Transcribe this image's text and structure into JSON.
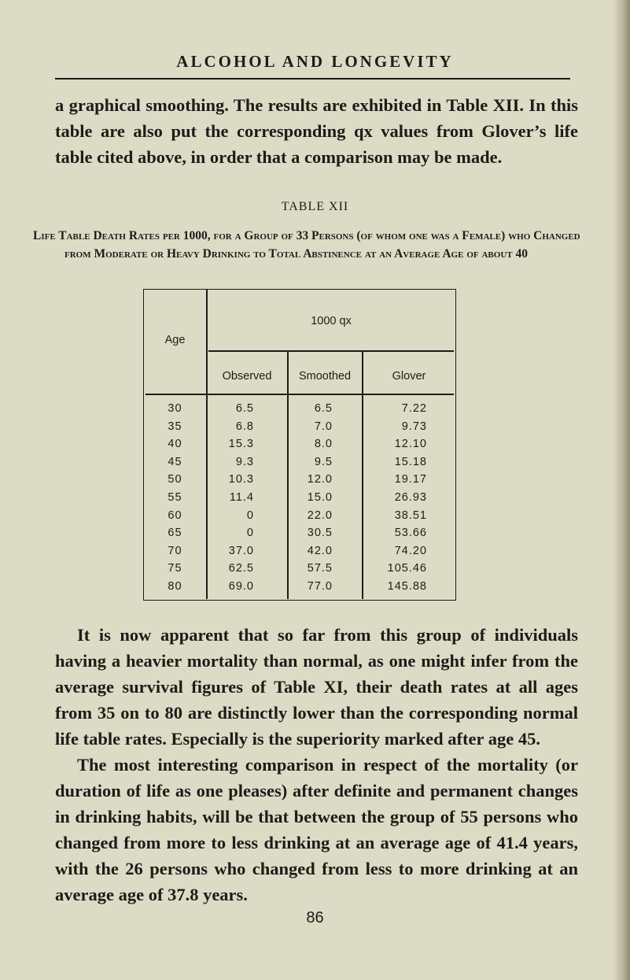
{
  "running_head": "ALCOHOL AND LONGEVITY",
  "paragraph_1": "a graphical smoothing. The results are exhibited in Table XII. In this table are also put the corresponding qx values from Glover’s life table cited above, in order that a comparison may be made.",
  "table": {
    "title": "TABLE XII",
    "caption": "Life Table Death Rates per 1000, for a Group of 33 Persons (of whom one was a Female) who Changed from Moderate or Heavy Drinking to Total Abstinence at an Average Age of about 40",
    "header_age": "Age",
    "header_group": "1000 qx",
    "columns": [
      "Observed",
      "Smoothed",
      "Glover"
    ],
    "rows": [
      [
        "30",
        "6.5",
        "6.5",
        "7.22"
      ],
      [
        "35",
        "6.8",
        "7.0",
        "9.73"
      ],
      [
        "40",
        "15.3",
        "8.0",
        "12.10"
      ],
      [
        "45",
        "9.3",
        "9.5",
        "15.18"
      ],
      [
        "50",
        "10.3",
        "12.0",
        "19.17"
      ],
      [
        "55",
        "11.4",
        "15.0",
        "26.93"
      ],
      [
        "60",
        "0",
        "22.0",
        "38.51"
      ],
      [
        "65",
        "0",
        "30.5",
        "53.66"
      ],
      [
        "70",
        "37.0",
        "42.0",
        "74.20"
      ],
      [
        "75",
        "62.5",
        "57.5",
        "105.46"
      ],
      [
        "80",
        "69.0",
        "77.0",
        "145.88"
      ]
    ]
  },
  "paragraph_2": "It is now apparent that so far from this group of individuals having a heavier mortality than normal, as one might infer from the average survival figures of Table XI, their death rates at all ages from 35 on to 80 are distinctly lower than the corresponding normal life table rates. Especially is the superiority marked after age 45.",
  "paragraph_3": "The most interesting comparison in respect of the mortality (or duration of life as one pleases) after definite and permanent changes in drinking habits, will be that between the group of 55 persons who changed from more to less drinking at an average age of 41.4 years, with the 26 persons who changed from less to more drinking at an average age of 37.8 years.",
  "page_number": "86"
}
